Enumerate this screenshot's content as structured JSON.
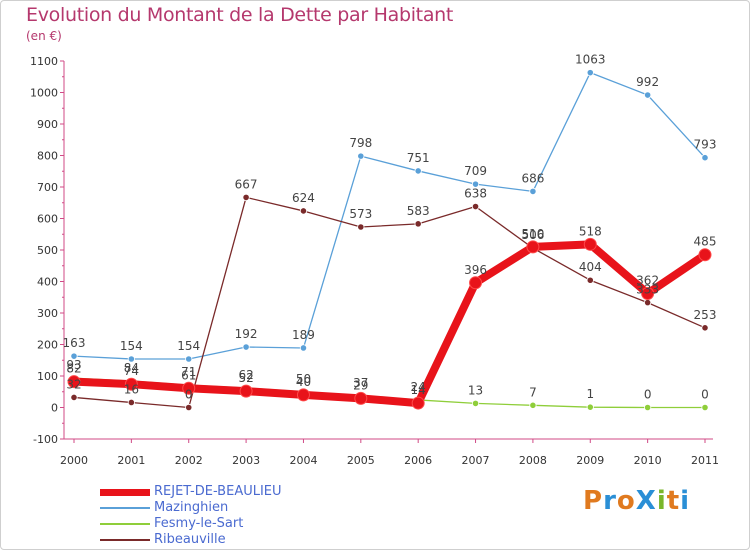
{
  "title": "Evolution du Montant de la Dette par Habitant",
  "unit": "(en €)",
  "logo": {
    "text": "ProXiti",
    "colors": [
      "#e07a1f",
      "#2a8fd6",
      "#e07a1f",
      "#2a8fd6",
      "#79b62b",
      "#e07a1f",
      "#2a8fd6"
    ]
  },
  "chart_data": {
    "type": "line",
    "title": "Evolution du Montant de la Dette par Habitant",
    "ylabel": "(en €)",
    "xlabel": "",
    "ylim": [
      -100,
      1100
    ],
    "yticks": [
      -100,
      0,
      100,
      200,
      300,
      400,
      500,
      600,
      700,
      800,
      900,
      1000,
      1100
    ],
    "x": [
      "2000",
      "2001",
      "2002",
      "2003",
      "2004",
      "2005",
      "2006",
      "2007",
      "2008",
      "2009",
      "2010",
      "2011"
    ],
    "grid": false,
    "legend_position": "bottom-left",
    "series": [
      {
        "name": "REJET-DE-BEAULIEU",
        "color": "#e8131a",
        "values": [
          82,
          74,
          61,
          52,
          40,
          29,
          14,
          396,
          510,
          518,
          362,
          485
        ],
        "labels": [
          "82",
          "74",
          "61",
          "52",
          "40",
          "29",
          "14",
          "396",
          "510",
          "518",
          "362",
          "485"
        ]
      },
      {
        "name": "Mazinghien",
        "color": "#5aa0d8",
        "values": [
          163,
          154,
          154,
          192,
          189,
          798,
          751,
          709,
          686,
          1063,
          992,
          793
        ],
        "labels": [
          "163",
          "154",
          "154",
          "192",
          "189",
          "798",
          "751",
          "709",
          "686",
          "1063",
          "992",
          "793"
        ]
      },
      {
        "name": "Fesmy-le-Sart",
        "color": "#8fce3a",
        "values": [
          93,
          84,
          71,
          62,
          50,
          37,
          24,
          13,
          7,
          1,
          0,
          0
        ],
        "labels": [
          "93",
          "84",
          "71",
          "62",
          "50",
          "37",
          "24",
          "13",
          "7",
          "1",
          "0",
          "0"
        ]
      },
      {
        "name": "Ribeauville",
        "color": "#7a2a2a",
        "values": [
          32,
          16,
          0,
          667,
          624,
          573,
          583,
          638,
          506,
          404,
          333,
          253
        ],
        "labels": [
          "32",
          "16",
          "0",
          "667",
          "624",
          "573",
          "583",
          "638",
          "506",
          "404",
          "333",
          "253"
        ]
      }
    ]
  }
}
